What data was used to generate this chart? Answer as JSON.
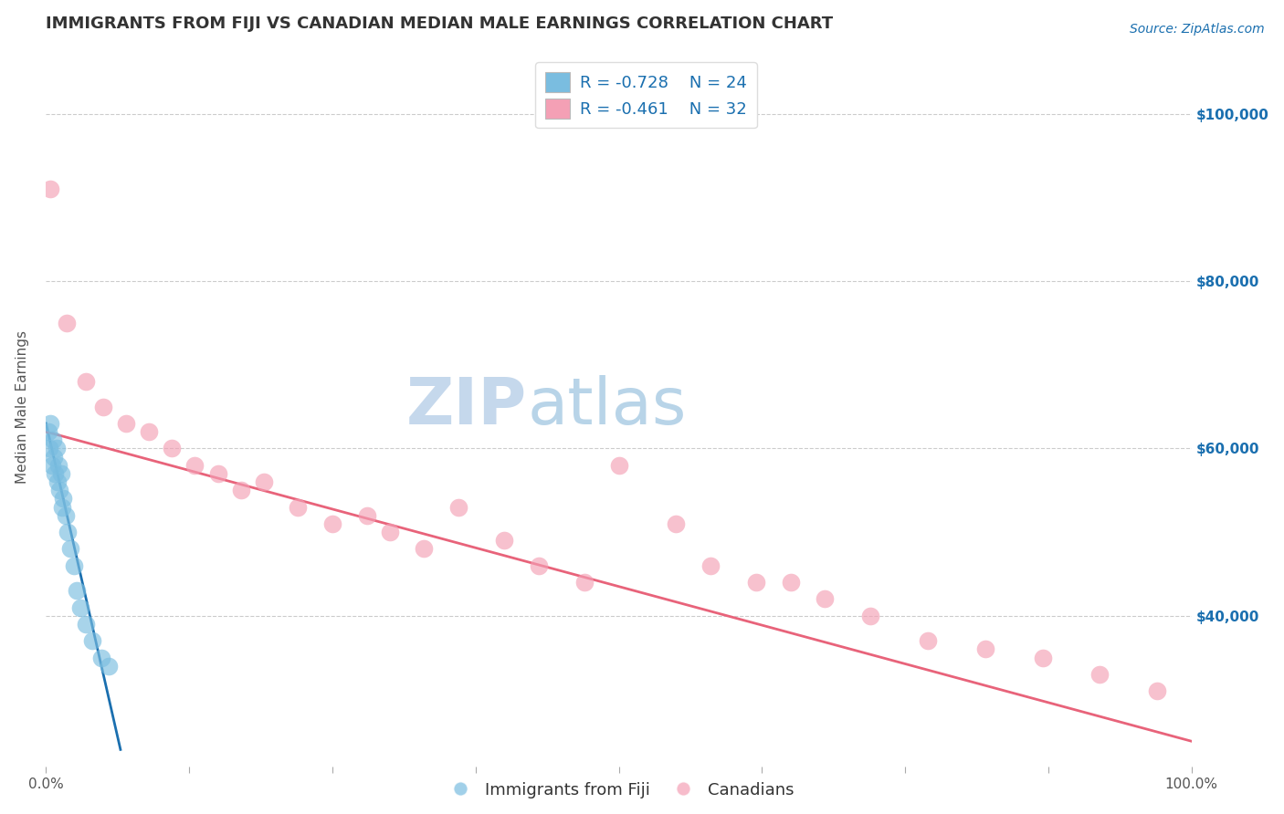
{
  "title": "IMMIGRANTS FROM FIJI VS CANADIAN MEDIAN MALE EARNINGS CORRELATION CHART",
  "source": "Source: ZipAtlas.com",
  "ylabel": "Median Male Earnings",
  "legend_label1": "Immigrants from Fiji",
  "legend_label2": "Canadians",
  "r1": -0.728,
  "n1": 24,
  "r2": -0.461,
  "n2": 32,
  "xlim": [
    0.0,
    100.0
  ],
  "ylim": [
    22000,
    108000
  ],
  "yticks": [
    40000,
    60000,
    80000,
    100000
  ],
  "ytick_labels": [
    "$40,000",
    "$60,000",
    "$80,000",
    "$100,000"
  ],
  "xticks": [
    0.0,
    12.5,
    25.0,
    37.5,
    50.0,
    62.5,
    75.0,
    87.5,
    100.0
  ],
  "xtick_labels": [
    "0.0%",
    "",
    "",
    "",
    "",
    "",
    "",
    "",
    "100.0%"
  ],
  "color_blue": "#7abde0",
  "color_pink": "#f4a0b5",
  "line_blue": "#1a6faf",
  "line_pink": "#e8637a",
  "background_color": "#ffffff",
  "watermark_zip": "ZIP",
  "watermark_atlas": "atlas",
  "watermark_color_zip": "#c5d8ec",
  "watermark_color_atlas": "#b8d4e8",
  "blue_dots_x": [
    0.2,
    0.3,
    0.4,
    0.5,
    0.6,
    0.7,
    0.8,
    0.9,
    1.0,
    1.1,
    1.2,
    1.3,
    1.4,
    1.5,
    1.7,
    1.9,
    2.1,
    2.4,
    2.7,
    3.0,
    3.5,
    4.0,
    4.8,
    5.5
  ],
  "blue_dots_y": [
    62000,
    60000,
    63000,
    58000,
    61000,
    59000,
    57000,
    60000,
    56000,
    58000,
    55000,
    57000,
    53000,
    54000,
    52000,
    50000,
    48000,
    46000,
    43000,
    41000,
    39000,
    37000,
    35000,
    34000
  ],
  "pink_dots_x": [
    0.4,
    1.8,
    3.5,
    5.0,
    7.0,
    9.0,
    11.0,
    13.0,
    15.0,
    17.0,
    19.0,
    22.0,
    25.0,
    28.0,
    30.0,
    33.0,
    36.0,
    40.0,
    43.0,
    47.0,
    50.0,
    55.0,
    58.0,
    62.0,
    65.0,
    68.0,
    72.0,
    77.0,
    82.0,
    87.0,
    92.0,
    97.0
  ],
  "pink_dots_y": [
    91000,
    75000,
    68000,
    65000,
    63000,
    62000,
    60000,
    58000,
    57000,
    55000,
    56000,
    53000,
    51000,
    52000,
    50000,
    48000,
    53000,
    49000,
    46000,
    44000,
    58000,
    51000,
    46000,
    44000,
    44000,
    42000,
    40000,
    37000,
    36000,
    35000,
    33000,
    31000
  ],
  "blue_line_x": [
    0.0,
    6.5
  ],
  "blue_line_y": [
    63000,
    24000
  ],
  "pink_line_x": [
    0.0,
    100.0
  ],
  "pink_line_y": [
    62000,
    25000
  ],
  "grid_color": "#cccccc",
  "title_fontsize": 13,
  "axis_label_fontsize": 11,
  "tick_fontsize": 11,
  "legend_fontsize": 13,
  "watermark_fontsize": 52
}
